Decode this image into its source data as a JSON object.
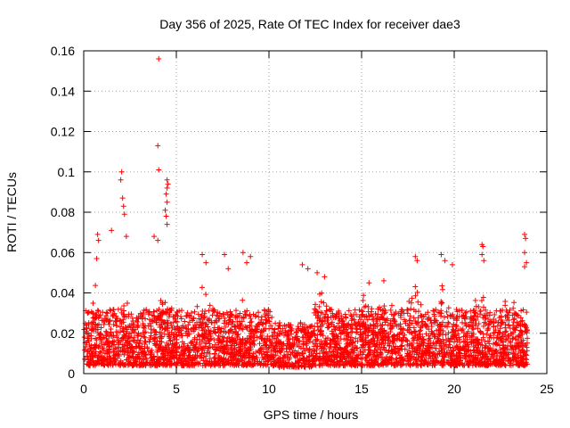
{
  "chart_data": {
    "type": "scatter",
    "title": "Day 356 of 2025, Rate Of TEC Index for receiver dae3",
    "xlabel": "GPS time / hours",
    "ylabel": "ROTI / TECUs",
    "xlim": [
      0,
      25
    ],
    "ylim": [
      0,
      0.16
    ],
    "x_ticks": [
      0,
      5,
      10,
      15,
      20,
      25
    ],
    "x_tick_labels": [
      "0",
      "5",
      "10",
      "15",
      "20",
      "25"
    ],
    "y_ticks": [
      0,
      0.02,
      0.04,
      0.06,
      0.08,
      0.1,
      0.12,
      0.14,
      0.16
    ],
    "y_tick_labels": [
      "0",
      "0.02",
      "0.04",
      "0.06",
      "0.08",
      "0.1",
      "0.12",
      "0.14",
      "0.16"
    ],
    "grid": true,
    "marker": "+",
    "color": "#ff0000",
    "series": [
      {
        "name": "ROTI",
        "note": "dense band of ~thousands of points between 0.003 and 0.035 TECU/s across 0-24 h; representative outliers listed",
        "points": [
          [
            4.05,
            0.156
          ],
          [
            4.0,
            0.113
          ],
          [
            4.05,
            0.101
          ],
          [
            2.05,
            0.1
          ],
          [
            2.0,
            0.096
          ],
          [
            2.1,
            0.087
          ],
          [
            2.15,
            0.083
          ],
          [
            2.2,
            0.079
          ],
          [
            4.5,
            0.096
          ],
          [
            4.55,
            0.094
          ],
          [
            4.5,
            0.092
          ],
          [
            4.45,
            0.089
          ],
          [
            4.5,
            0.085
          ],
          [
            4.4,
            0.081
          ],
          [
            4.45,
            0.078
          ],
          [
            4.5,
            0.074
          ],
          [
            0.75,
            0.069
          ],
          [
            0.8,
            0.066
          ],
          [
            0.7,
            0.057
          ],
          [
            1.5,
            0.071
          ],
          [
            2.3,
            0.068
          ],
          [
            3.8,
            0.068
          ],
          [
            4.0,
            0.066
          ],
          [
            6.4,
            0.059
          ],
          [
            6.6,
            0.055
          ],
          [
            7.6,
            0.059
          ],
          [
            7.8,
            0.052
          ],
          [
            8.6,
            0.06
          ],
          [
            8.8,
            0.055
          ],
          [
            9.0,
            0.058
          ],
          [
            11.8,
            0.054
          ],
          [
            12.1,
            0.052
          ],
          [
            12.6,
            0.05
          ],
          [
            13.0,
            0.048
          ],
          [
            15.4,
            0.045
          ],
          [
            16.2,
            0.046
          ],
          [
            17.9,
            0.058
          ],
          [
            18.0,
            0.056
          ],
          [
            19.3,
            0.059
          ],
          [
            19.5,
            0.056
          ],
          [
            19.9,
            0.054
          ],
          [
            21.5,
            0.064
          ],
          [
            21.55,
            0.063
          ],
          [
            21.5,
            0.059
          ],
          [
            21.6,
            0.056
          ],
          [
            23.8,
            0.069
          ],
          [
            23.85,
            0.067
          ],
          [
            23.8,
            0.06
          ],
          [
            23.9,
            0.055
          ],
          [
            23.8,
            0.053
          ]
        ]
      }
    ]
  }
}
